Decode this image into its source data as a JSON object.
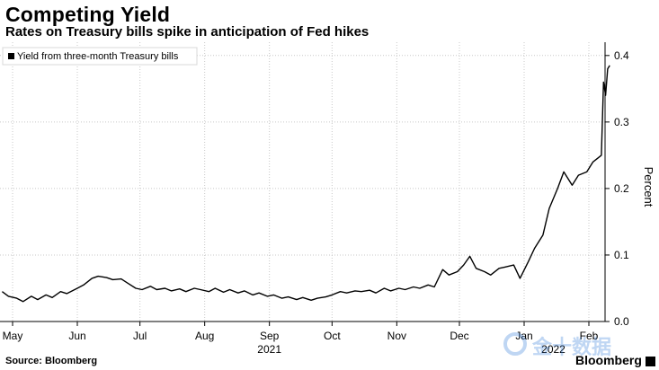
{
  "header": {
    "title": "Competing Yield",
    "subtitle": "Rates on Treasury bills spike in anticipation of Fed hikes"
  },
  "footer": {
    "source": "Source: Bloomberg",
    "brand": "Bloomberg"
  },
  "watermark": {
    "text": "金十数据"
  },
  "colors": {
    "line": "#000000",
    "grid": "#c8c8c8",
    "background": "#ffffff"
  },
  "chart_data": {
    "type": "line",
    "title": "Competing Yield",
    "subtitle": "Rates on Treasury bills spike in anticipation of Fed hikes",
    "xlabel": "",
    "ylabel": "Percent",
    "ylim": [
      0.0,
      0.42
    ],
    "yticks": [
      0.0,
      0.1,
      0.2,
      0.3,
      0.4
    ],
    "ytick_labels": [
      "0.0",
      "0.1",
      "0.2",
      "0.3",
      "0.4"
    ],
    "x_range": [
      "2021-04-26",
      "2022-02-11"
    ],
    "xticks": [
      {
        "date": "2021-05-01",
        "label": "May"
      },
      {
        "date": "2021-06-01",
        "label": "Jun"
      },
      {
        "date": "2021-07-01",
        "label": "Jul"
      },
      {
        "date": "2021-08-01",
        "label": "Aug"
      },
      {
        "date": "2021-09-01",
        "label": "Sep"
      },
      {
        "date": "2021-10-01",
        "label": "Oct"
      },
      {
        "date": "2021-11-01",
        "label": "Nov"
      },
      {
        "date": "2021-12-01",
        "label": "Dec"
      },
      {
        "date": "2022-01-01",
        "label": "Jan"
      },
      {
        "date": "2022-02-01",
        "label": "Feb"
      }
    ],
    "year_labels": [
      {
        "date": "2021-09-01",
        "label": "2021"
      },
      {
        "date": "2022-01-15",
        "label": "2022"
      }
    ],
    "grid": true,
    "y_axis_side": "right",
    "legend": {
      "position": "top-left"
    },
    "series": [
      {
        "name": "Yield from three-month Treasury bills",
        "points": [
          [
            "2021-04-26",
            0.045
          ],
          [
            "2021-04-29",
            0.038
          ],
          [
            "2021-05-03",
            0.035
          ],
          [
            "2021-05-06",
            0.03
          ],
          [
            "2021-05-10",
            0.038
          ],
          [
            "2021-05-13",
            0.033
          ],
          [
            "2021-05-17",
            0.04
          ],
          [
            "2021-05-20",
            0.036
          ],
          [
            "2021-05-24",
            0.045
          ],
          [
            "2021-05-27",
            0.042
          ],
          [
            "2021-06-01",
            0.05
          ],
          [
            "2021-06-04",
            0.055
          ],
          [
            "2021-06-08",
            0.065
          ],
          [
            "2021-06-11",
            0.068
          ],
          [
            "2021-06-15",
            0.066
          ],
          [
            "2021-06-18",
            0.063
          ],
          [
            "2021-06-22",
            0.064
          ],
          [
            "2021-06-25",
            0.058
          ],
          [
            "2021-06-29",
            0.05
          ],
          [
            "2021-07-02",
            0.048
          ],
          [
            "2021-07-06",
            0.053
          ],
          [
            "2021-07-09",
            0.048
          ],
          [
            "2021-07-13",
            0.05
          ],
          [
            "2021-07-16",
            0.046
          ],
          [
            "2021-07-20",
            0.049
          ],
          [
            "2021-07-23",
            0.045
          ],
          [
            "2021-07-27",
            0.05
          ],
          [
            "2021-07-30",
            0.048
          ],
          [
            "2021-08-03",
            0.045
          ],
          [
            "2021-08-06",
            0.05
          ],
          [
            "2021-08-10",
            0.044
          ],
          [
            "2021-08-13",
            0.048
          ],
          [
            "2021-08-17",
            0.043
          ],
          [
            "2021-08-20",
            0.046
          ],
          [
            "2021-08-24",
            0.04
          ],
          [
            "2021-08-27",
            0.043
          ],
          [
            "2021-08-31",
            0.038
          ],
          [
            "2021-09-03",
            0.04
          ],
          [
            "2021-09-07",
            0.035
          ],
          [
            "2021-09-10",
            0.037
          ],
          [
            "2021-09-14",
            0.033
          ],
          [
            "2021-09-17",
            0.036
          ],
          [
            "2021-09-21",
            0.032
          ],
          [
            "2021-09-24",
            0.035
          ],
          [
            "2021-09-28",
            0.037
          ],
          [
            "2021-10-01",
            0.04
          ],
          [
            "2021-10-05",
            0.045
          ],
          [
            "2021-10-08",
            0.043
          ],
          [
            "2021-10-12",
            0.046
          ],
          [
            "2021-10-15",
            0.045
          ],
          [
            "2021-10-19",
            0.047
          ],
          [
            "2021-10-22",
            0.043
          ],
          [
            "2021-10-26",
            0.05
          ],
          [
            "2021-10-29",
            0.046
          ],
          [
            "2021-11-02",
            0.05
          ],
          [
            "2021-11-05",
            0.048
          ],
          [
            "2021-11-09",
            0.052
          ],
          [
            "2021-11-12",
            0.05
          ],
          [
            "2021-11-16",
            0.055
          ],
          [
            "2021-11-19",
            0.052
          ],
          [
            "2021-11-23",
            0.078
          ],
          [
            "2021-11-26",
            0.07
          ],
          [
            "2021-11-30",
            0.075
          ],
          [
            "2021-12-03",
            0.085
          ],
          [
            "2021-12-06",
            0.098
          ],
          [
            "2021-12-09",
            0.08
          ],
          [
            "2021-12-13",
            0.075
          ],
          [
            "2021-12-16",
            0.07
          ],
          [
            "2021-12-20",
            0.08
          ],
          [
            "2021-12-23",
            0.082
          ],
          [
            "2021-12-27",
            0.085
          ],
          [
            "2021-12-30",
            0.065
          ],
          [
            "2022-01-03",
            0.09
          ],
          [
            "2022-01-06",
            0.11
          ],
          [
            "2022-01-10",
            0.13
          ],
          [
            "2022-01-13",
            0.17
          ],
          [
            "2022-01-17",
            0.2
          ],
          [
            "2022-01-20",
            0.225
          ],
          [
            "2022-01-24",
            0.205
          ],
          [
            "2022-01-27",
            0.22
          ],
          [
            "2022-01-31",
            0.225
          ],
          [
            "2022-02-03",
            0.24
          ],
          [
            "2022-02-07",
            0.25
          ],
          [
            "2022-02-08",
            0.36
          ],
          [
            "2022-02-09",
            0.34
          ],
          [
            "2022-02-10",
            0.38
          ],
          [
            "2022-02-11",
            0.385
          ]
        ]
      }
    ]
  }
}
